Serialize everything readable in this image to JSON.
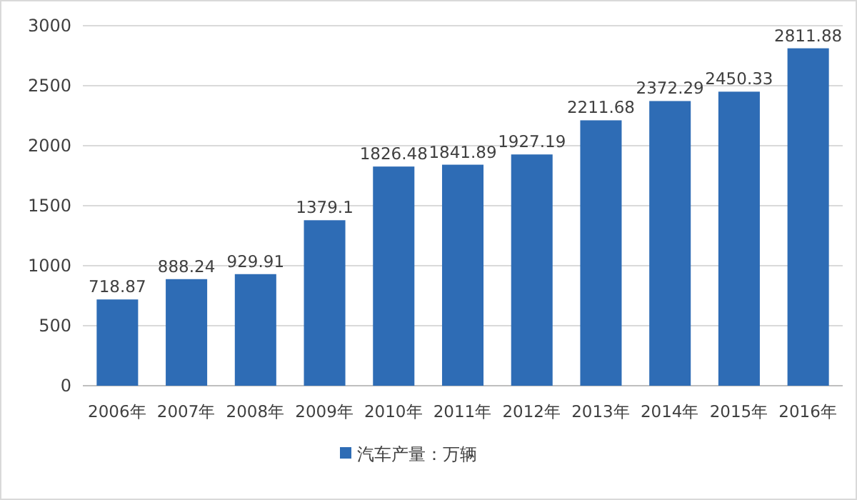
{
  "chart_data": {
    "type": "bar",
    "categories": [
      "2006年",
      "2007年",
      "2008年",
      "2009年",
      "2010年",
      "2011年",
      "2012年",
      "2013年",
      "2014年",
      "2015年",
      "2016年"
    ],
    "series": [
      {
        "name": "汽车产量：万辆",
        "color": "#2e6cb5",
        "values": [
          718.87,
          888.24,
          929.91,
          1379.1,
          1826.48,
          1841.89,
          1927.19,
          2211.68,
          2372.29,
          2450.33,
          2811.88
        ]
      }
    ],
    "ylim": [
      0,
      3000
    ],
    "yticks": [
      0,
      500,
      1000,
      1500,
      2000,
      2500,
      3000
    ],
    "grid": "y",
    "legend": "bottom",
    "data_labels": true
  }
}
